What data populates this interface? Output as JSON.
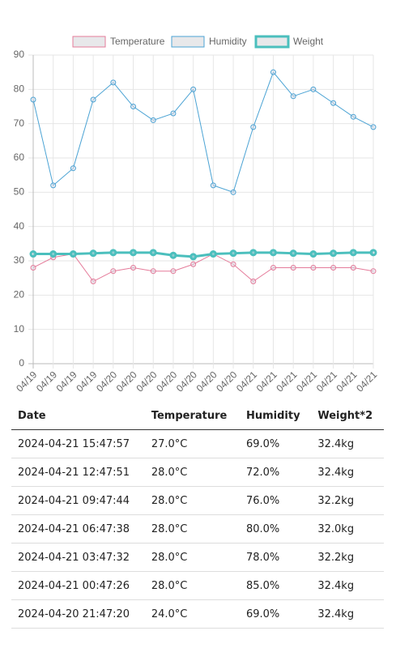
{
  "chart_data": {
    "type": "line",
    "categories": [
      "04/19",
      "04/19",
      "04/19",
      "04/19",
      "04/20",
      "04/20",
      "04/20",
      "04/20",
      "04/20",
      "04/20",
      "04/20",
      "04/21",
      "04/21",
      "04/21",
      "04/21",
      "04/21",
      "04/21",
      "04/21"
    ],
    "series": [
      {
        "name": "Temperature",
        "color": "#e57b9a",
        "values": [
          28,
          31,
          32,
          24,
          27,
          28,
          27,
          27,
          29,
          32,
          29,
          24,
          28,
          28,
          28,
          28,
          28,
          27
        ]
      },
      {
        "name": "Humidity",
        "color": "#4ba3d4",
        "values": [
          77,
          52,
          57,
          77,
          82,
          75,
          71,
          73,
          80,
          52,
          50,
          69,
          85,
          78,
          80,
          76,
          72,
          69
        ]
      },
      {
        "name": "Weight",
        "color": "#4bbfbd",
        "values": [
          32,
          32,
          32,
          32.2,
          32.4,
          32.4,
          32.4,
          31.6,
          31.2,
          32,
          32.2,
          32.4,
          32.4,
          32.2,
          32,
          32.2,
          32.4,
          32.4
        ]
      }
    ],
    "ylim": [
      0,
      90
    ],
    "yticks": [
      0,
      10,
      20,
      30,
      40,
      50,
      60,
      70,
      80,
      90
    ],
    "grid": true,
    "legend": "top"
  },
  "table": {
    "headers": [
      "Date",
      "Temperature",
      "Humidity",
      "Weight*2"
    ],
    "rows": [
      [
        "2024-04-21 15:47:57",
        "27.0°C",
        "69.0%",
        "32.4kg"
      ],
      [
        "2024-04-21 12:47:51",
        "28.0°C",
        "72.0%",
        "32.4kg"
      ],
      [
        "2024-04-21 09:47:44",
        "28.0°C",
        "76.0%",
        "32.2kg"
      ],
      [
        "2024-04-21 06:47:38",
        "28.0°C",
        "80.0%",
        "32.0kg"
      ],
      [
        "2024-04-21 03:47:32",
        "28.0°C",
        "78.0%",
        "32.2kg"
      ],
      [
        "2024-04-21 00:47:26",
        "28.0°C",
        "85.0%",
        "32.4kg"
      ],
      [
        "2024-04-20 21:47:20",
        "24.0°C",
        "69.0%",
        "32.4kg"
      ]
    ]
  }
}
